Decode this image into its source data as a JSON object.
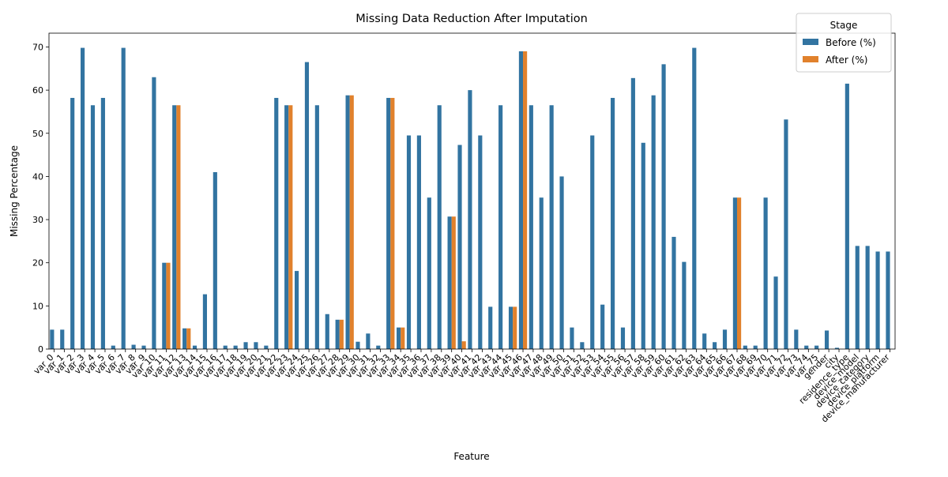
{
  "chart_data": {
    "type": "bar",
    "title": "Missing Data Reduction After Imputation",
    "xlabel": "Feature",
    "ylabel": "Missing Percentage",
    "ylim": [
      0,
      73.2
    ],
    "yticks": [
      0,
      10,
      20,
      30,
      40,
      50,
      60,
      70
    ],
    "grid": false,
    "legend": {
      "title": "Stage",
      "position": "top-right"
    },
    "categories": [
      "var_0",
      "var_1",
      "var_2",
      "var_3",
      "var_4",
      "var_5",
      "var_6",
      "var_7",
      "var_8",
      "var_9",
      "var_10",
      "var_11",
      "var_12",
      "var_13",
      "var_14",
      "var_15",
      "var_16",
      "var_17",
      "var_18",
      "var_19",
      "var_20",
      "var_21",
      "var_22",
      "var_23",
      "var_24",
      "var_25",
      "var_26",
      "var_27",
      "var_28",
      "var_29",
      "var_30",
      "var_31",
      "var_32",
      "var_33",
      "var_34",
      "var_35",
      "var_36",
      "var_37",
      "var_38",
      "var_39",
      "var_40",
      "var_41",
      "var_42",
      "var_43",
      "var_44",
      "var_45",
      "var_46",
      "var_47",
      "var_48",
      "var_49",
      "var_50",
      "var_51",
      "var_52",
      "var_53",
      "var_54",
      "var_55",
      "var_56",
      "var_57",
      "var_58",
      "var_59",
      "var_60",
      "var_61",
      "var_62",
      "var_63",
      "var_64",
      "var_65",
      "var_66",
      "var_67",
      "var_68",
      "var_69",
      "var_70",
      "var_71",
      "var_72",
      "var_73",
      "var_74",
      "var_75",
      "gender",
      "city",
      "residence_type",
      "device_model",
      "device_category",
      "device_platform",
      "device_manufacturer"
    ],
    "series": [
      {
        "name": "Before (%)",
        "color": "#3274a1",
        "values": [
          4.5,
          4.5,
          58.2,
          69.8,
          56.5,
          58.2,
          0.8,
          69.8,
          1.0,
          0.8,
          63.0,
          20.0,
          56.5,
          4.8,
          0.8,
          12.7,
          41.0,
          0.8,
          0.8,
          1.6,
          1.6,
          0.8,
          58.2,
          56.5,
          18.1,
          66.5,
          56.5,
          8.1,
          6.8,
          58.8,
          1.7,
          3.6,
          0.8,
          58.2,
          5.0,
          49.5,
          49.5,
          35.1,
          56.5,
          30.7,
          47.3,
          60.0,
          49.5,
          9.8,
          56.5,
          9.8,
          69.0,
          56.5,
          35.1,
          56.5,
          40.0,
          5.0,
          1.6,
          49.5,
          10.3,
          58.2,
          5.0,
          62.8,
          47.8,
          58.8,
          66.0,
          26.0,
          20.2,
          69.8,
          3.6,
          1.6,
          4.5,
          35.1,
          0.8,
          0.8,
          35.1,
          16.8,
          53.2,
          4.5,
          0.8,
          0.8,
          4.3,
          0.3,
          61.5,
          23.9,
          23.9,
          22.6,
          22.6
        ]
      },
      {
        "name": "After (%)",
        "color": "#e1812c",
        "values": [
          0,
          0,
          0,
          0,
          0,
          0,
          0,
          0,
          0,
          0,
          0,
          20.0,
          56.5,
          4.8,
          0,
          0,
          0,
          0,
          0,
          0,
          0,
          0,
          0,
          56.5,
          0,
          0,
          0,
          0,
          6.8,
          58.8,
          0,
          0,
          0,
          58.2,
          5.0,
          0,
          0,
          0,
          0,
          30.7,
          1.8,
          0,
          0,
          0,
          0,
          9.8,
          69.0,
          0,
          0,
          0,
          0,
          0,
          0,
          0,
          0,
          0,
          0,
          0,
          0,
          0,
          0,
          0,
          0,
          0,
          0,
          0,
          0,
          35.1,
          0,
          0,
          0,
          0,
          0,
          0,
          0,
          0,
          0,
          0,
          0,
          0,
          0,
          0,
          0
        ]
      }
    ]
  }
}
